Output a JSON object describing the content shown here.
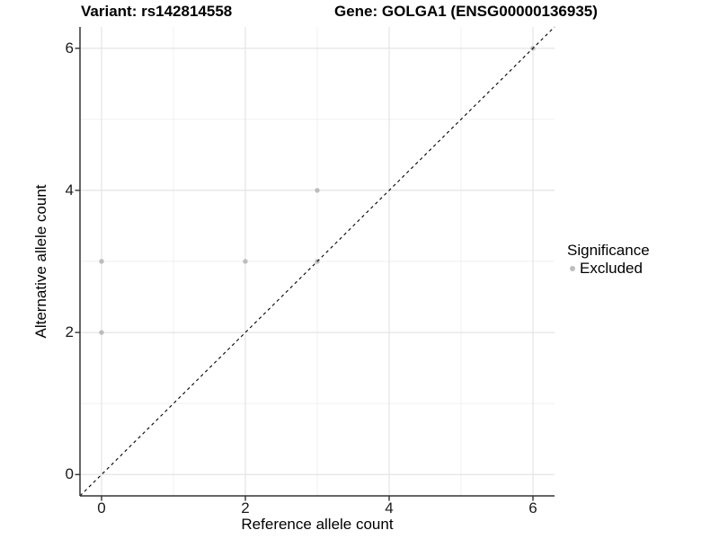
{
  "chart_data": {
    "type": "scatter",
    "titles": {
      "variant": "Variant: rs142814558",
      "gene": "Gene: GOLGA1 (ENSG00000136935)"
    },
    "xlabel": "Reference allele count",
    "ylabel": "Alternative allele count",
    "xlim": [
      -0.3,
      6.3
    ],
    "ylim": [
      -0.3,
      6.3
    ],
    "x_ticks": [
      0,
      2,
      4,
      6
    ],
    "y_ticks": [
      0,
      2,
      4,
      6
    ],
    "minor_gridlines_x": [
      1,
      3,
      5
    ],
    "minor_gridlines_y": [
      1,
      3,
      5
    ],
    "grid": true,
    "series": [
      {
        "name": "Excluded",
        "color": "#bdbdbd",
        "points": [
          [
            0,
            2
          ],
          [
            0,
            3
          ],
          [
            2,
            3
          ],
          [
            3,
            3
          ],
          [
            3,
            4
          ],
          [
            6,
            6
          ]
        ]
      }
    ],
    "reference_line": {
      "kind": "identity-diagonal",
      "slope": 1,
      "intercept": 0,
      "style": "dashed",
      "color": "#000000"
    },
    "legend": {
      "position": "right",
      "title": "Significance",
      "items": [
        {
          "label": "Excluded",
          "color": "#bdbdbd"
        }
      ]
    }
  }
}
